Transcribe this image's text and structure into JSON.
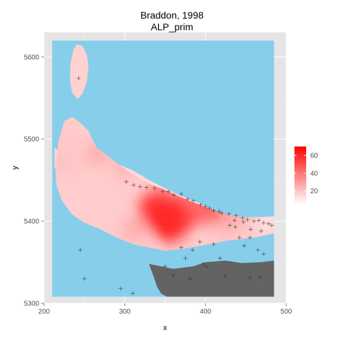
{
  "chart_data": {
    "type": "heatmap",
    "title": "Braddon, 1998",
    "subtitle": "ALP_prim",
    "xlabel": "x",
    "ylabel": "y",
    "xlim": [
      200,
      500
    ],
    "ylim": [
      5300,
      5630
    ],
    "xticks": [
      200,
      300,
      400,
      500
    ],
    "yticks": [
      5300,
      5400,
      5500,
      5600
    ],
    "grid": true,
    "legend_position": "right",
    "legend": {
      "ticks": [
        20,
        40,
        60
      ],
      "range": [
        5,
        70
      ],
      "colors": {
        "low": "#ffffff",
        "high": "#ff0000"
      }
    },
    "colors": {
      "panel": "#e5e5e5",
      "water": "#87ceeb",
      "land_no_data": "#636363",
      "grid": "#f2f2f2"
    },
    "regions": {
      "water_extent": {
        "x": [
          210,
          485
        ],
        "y": [
          5308,
          5620
        ]
      },
      "island_outline": [
        [
          240,
          5615
        ],
        [
          247,
          5614
        ],
        [
          253,
          5603
        ],
        [
          255,
          5588
        ],
        [
          253,
          5570
        ],
        [
          248,
          5556
        ],
        [
          242,
          5549
        ],
        [
          235,
          5556
        ],
        [
          232,
          5572
        ],
        [
          233,
          5592
        ],
        [
          236,
          5607
        ]
      ],
      "mainland_outline": [
        [
          213,
          5490
        ],
        [
          220,
          5482
        ],
        [
          222,
          5470
        ],
        [
          228,
          5473
        ],
        [
          234,
          5478
        ],
        [
          245,
          5482
        ],
        [
          260,
          5482
        ],
        [
          275,
          5480
        ],
        [
          290,
          5470
        ],
        [
          310,
          5462
        ],
        [
          330,
          5450
        ],
        [
          350,
          5440
        ],
        [
          372,
          5430
        ],
        [
          392,
          5422
        ],
        [
          410,
          5413
        ],
        [
          425,
          5408
        ],
        [
          440,
          5403
        ],
        [
          455,
          5403
        ],
        [
          470,
          5403
        ],
        [
          485,
          5405
        ],
        [
          485,
          5385
        ],
        [
          440,
          5385
        ],
        [
          400,
          5380
        ],
        [
          380,
          5382
        ],
        [
          360,
          5386
        ],
        [
          330,
          5390
        ],
        [
          315,
          5395
        ],
        [
          300,
          5400
        ],
        [
          280,
          5406
        ],
        [
          260,
          5415
        ],
        [
          240,
          5432
        ],
        [
          225,
          5450
        ],
        [
          213,
          5465
        ]
      ],
      "data_outline": [
        [
          225,
          5522
        ],
        [
          235,
          5527
        ],
        [
          245,
          5520
        ],
        [
          255,
          5510
        ],
        [
          265,
          5490
        ],
        [
          285,
          5475
        ],
        [
          305,
          5460
        ],
        [
          330,
          5446
        ],
        [
          355,
          5436
        ],
        [
          375,
          5427
        ],
        [
          395,
          5419
        ],
        [
          415,
          5412
        ],
        [
          432,
          5407
        ],
        [
          450,
          5405
        ],
        [
          470,
          5405
        ],
        [
          485,
          5406
        ],
        [
          485,
          5385
        ],
        [
          460,
          5380
        ],
        [
          425,
          5376
        ],
        [
          395,
          5370
        ],
        [
          370,
          5366
        ],
        [
          350,
          5364
        ],
        [
          330,
          5368
        ],
        [
          310,
          5372
        ],
        [
          290,
          5380
        ],
        [
          270,
          5390
        ],
        [
          250,
          5398
        ],
        [
          235,
          5408
        ],
        [
          222,
          5425
        ],
        [
          215,
          5445
        ],
        [
          214,
          5470
        ],
        [
          218,
          5498
        ]
      ],
      "gray_outline": [
        [
          330,
          5348
        ],
        [
          360,
          5342
        ],
        [
          385,
          5345
        ],
        [
          400,
          5350
        ],
        [
          425,
          5352
        ],
        [
          445,
          5349
        ],
        [
          468,
          5350
        ],
        [
          485,
          5352
        ],
        [
          485,
          5308
        ],
        [
          420,
          5308
        ],
        [
          380,
          5308
        ],
        [
          352,
          5308
        ],
        [
          345,
          5312
        ],
        [
          340,
          5320
        ],
        [
          336,
          5332
        ]
      ]
    },
    "points": [
      {
        "x": 243,
        "y": 5584,
        "value": 20
      },
      {
        "x": 241,
        "y": 5568,
        "value": 18
      },
      {
        "x": 228,
        "y": 5497,
        "value": 20
      },
      {
        "x": 265,
        "y": 5482,
        "value": 27
      },
      {
        "x": 300,
        "y": 5465,
        "value": 25
      },
      {
        "x": 352,
        "y": 5450,
        "value": 36
      },
      {
        "x": 355,
        "y": 5400,
        "value": 68
      },
      {
        "x": 340,
        "y": 5415,
        "value": 60
      },
      {
        "x": 372,
        "y": 5412,
        "value": 58
      },
      {
        "x": 392,
        "y": 5425,
        "value": 40
      },
      {
        "x": 405,
        "y": 5413,
        "value": 45
      },
      {
        "x": 435,
        "y": 5410,
        "value": 30
      },
      {
        "x": 458,
        "y": 5405,
        "value": 18
      },
      {
        "x": 448,
        "y": 5393,
        "value": 20
      },
      {
        "x": 475,
        "y": 5395,
        "value": 10
      },
      {
        "x": 428,
        "y": 5392,
        "value": 24
      },
      {
        "x": 480,
        "y": 5404,
        "value": 12
      },
      {
        "x": 226,
        "y": 5470,
        "value": 22
      },
      {
        "x": 312,
        "y": 5390,
        "value": 28
      },
      {
        "x": 320,
        "y": 5372,
        "value": 20
      },
      {
        "x": 267,
        "y": 5394,
        "value": 18
      },
      {
        "x": 236,
        "y": 5415,
        "value": 16
      }
    ],
    "markers": [
      [
        243,
        5574
      ],
      [
        302,
        5448
      ],
      [
        311,
        5444
      ],
      [
        319,
        5442
      ],
      [
        327,
        5441
      ],
      [
        337,
        5440
      ],
      [
        347,
        5436
      ],
      [
        354,
        5436
      ],
      [
        361,
        5432
      ],
      [
        370,
        5433
      ],
      [
        378,
        5427
      ],
      [
        385,
        5425
      ],
      [
        394,
        5420
      ],
      [
        400,
        5418
      ],
      [
        405,
        5416
      ],
      [
        410,
        5413
      ],
      [
        417,
        5412
      ],
      [
        420,
        5410
      ],
      [
        429,
        5409
      ],
      [
        438,
        5407
      ],
      [
        446,
        5404
      ],
      [
        452,
        5402
      ],
      [
        460,
        5400
      ],
      [
        466,
        5401
      ],
      [
        472,
        5398
      ],
      [
        478,
        5397
      ],
      [
        370,
        5368
      ],
      [
        393,
        5375
      ],
      [
        410,
        5372
      ],
      [
        436,
        5401
      ],
      [
        447,
        5399
      ],
      [
        456,
        5390
      ],
      [
        469,
        5388
      ],
      [
        448,
        5370
      ],
      [
        465,
        5365
      ],
      [
        472,
        5360
      ],
      [
        430,
        5395
      ],
      [
        350,
        5345
      ],
      [
        360,
        5334
      ],
      [
        381,
        5330
      ],
      [
        424,
        5333
      ],
      [
        455,
        5331
      ],
      [
        468,
        5332
      ],
      [
        295,
        5318
      ],
      [
        310,
        5312
      ],
      [
        437,
        5393
      ],
      [
        384,
        5365
      ],
      [
        418,
        5355
      ],
      [
        245,
        5365
      ],
      [
        250,
        5330
      ],
      [
        375,
        5355
      ],
      [
        397,
        5348
      ],
      [
        401,
        5345
      ],
      [
        482,
        5395
      ],
      [
        442,
        5380
      ],
      [
        455,
        5380
      ]
    ]
  }
}
